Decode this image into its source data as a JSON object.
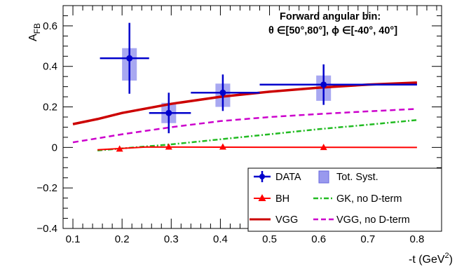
{
  "chart_data": {
    "type": "line",
    "xlabel": "-t (GeV²)",
    "xlabel_main": "-t (GeV",
    "xlabel_sup": "2",
    "xlabel_close": ")",
    "ylabel": "A_FB",
    "ylabel_main": "A",
    "ylabel_sub": "FB",
    "xlim": [
      0.08,
      0.85
    ],
    "ylim": [
      -0.4,
      0.7
    ],
    "xticks": [
      0.1,
      0.2,
      0.3,
      0.4,
      0.5,
      0.6,
      0.7,
      0.8
    ],
    "xtick_labels": [
      "0.1",
      "0.2",
      "0.3",
      "0.4",
      "0.5",
      "0.6",
      "0.7",
      "0.8"
    ],
    "yticks": [
      -0.4,
      -0.2,
      0,
      0.2,
      0.4,
      0.6
    ],
    "ytick_labels": [
      "−0.4",
      "−0.2",
      "0",
      "0.2",
      "0.4",
      "0.6"
    ],
    "grid": false,
    "legend_position": "bottom-right",
    "annotation_line1": "Forward angular bin:",
    "annotation_line2": "θ ∈[50°,80°], ϕ ∈[-40°, 40°]",
    "data_points": {
      "name": "DATA",
      "color": "#0000cc",
      "points": [
        {
          "x": 0.215,
          "y": 0.44,
          "x_lo": 0.155,
          "x_hi": 0.255,
          "y_err": 0.175
        },
        {
          "x": 0.295,
          "y": 0.17,
          "x_lo": 0.255,
          "x_hi": 0.34,
          "y_err": 0.1
        },
        {
          "x": 0.405,
          "y": 0.27,
          "x_lo": 0.34,
          "x_hi": 0.48,
          "y_err": 0.09
        },
        {
          "x": 0.61,
          "y": 0.31,
          "x_lo": 0.48,
          "x_hi": 0.8,
          "y_err": 0.1
        }
      ]
    },
    "syst_boxes": {
      "name": "Tot. Syst.",
      "color": "#9999ee",
      "boxes": [
        {
          "x_lo": 0.2,
          "x_hi": 0.23,
          "y_lo": 0.33,
          "y_hi": 0.49
        },
        {
          "x_lo": 0.28,
          "x_hi": 0.31,
          "y_lo": 0.12,
          "y_hi": 0.22
        },
        {
          "x_lo": 0.39,
          "x_hi": 0.42,
          "y_lo": 0.2,
          "y_hi": 0.315
        },
        {
          "x_lo": 0.595,
          "x_hi": 0.625,
          "y_lo": 0.23,
          "y_hi": 0.355
        }
      ]
    },
    "series": [
      {
        "name": "BH",
        "style": "solid-triangles",
        "color": "#ff0000",
        "x": [
          0.15,
          0.25,
          0.48,
          0.8
        ],
        "y": [
          -0.012,
          0.002,
          0.001,
          0.0
        ],
        "markers_x": [
          0.195,
          0.295,
          0.405,
          0.61
        ],
        "markers_y": [
          -0.007,
          0.003,
          0.003,
          0.001
        ]
      },
      {
        "name": "GK, no D-term",
        "style": "dash-dot",
        "color": "#22bb22",
        "x": [
          0.15,
          0.2,
          0.3,
          0.4,
          0.5,
          0.6,
          0.7,
          0.8
        ],
        "y": [
          -0.015,
          -0.005,
          0.015,
          0.04,
          0.065,
          0.09,
          0.112,
          0.135
        ]
      },
      {
        "name": "VGG",
        "style": "solid",
        "color": "#cc0000",
        "x": [
          0.1,
          0.15,
          0.2,
          0.3,
          0.4,
          0.5,
          0.6,
          0.7,
          0.8
        ],
        "y": [
          0.115,
          0.14,
          0.17,
          0.215,
          0.25,
          0.275,
          0.295,
          0.31,
          0.32
        ]
      },
      {
        "name": "VGG, no D-term",
        "style": "dashed",
        "color": "#cc00cc",
        "x": [
          0.1,
          0.15,
          0.2,
          0.3,
          0.4,
          0.5,
          0.6,
          0.7,
          0.8
        ],
        "y": [
          0.025,
          0.045,
          0.065,
          0.1,
          0.13,
          0.15,
          0.165,
          0.178,
          0.19
        ]
      }
    ]
  }
}
